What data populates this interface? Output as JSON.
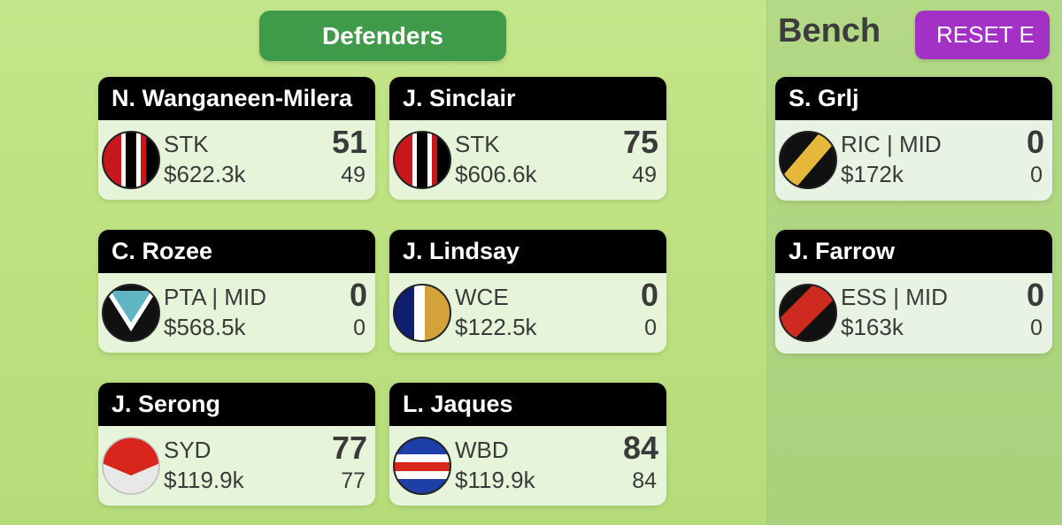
{
  "section": {
    "label": "Defenders"
  },
  "bench": {
    "title": "Bench",
    "reset_label": "RESET E"
  },
  "defenders": [
    {
      "name": "N. Wanganeen-Milera",
      "team": "STK",
      "price": "$622.3k",
      "score": "51",
      "avg": "49",
      "guernsey": "stk-icon"
    },
    {
      "name": "J. Sinclair",
      "team": "STK",
      "price": "$606.6k",
      "score": "75",
      "avg": "49",
      "guernsey": "stk-icon"
    },
    {
      "name": "C. Rozee",
      "team": "PTA | MID",
      "price": "$568.5k",
      "score": "0",
      "avg": "0",
      "guernsey": "pta-icon"
    },
    {
      "name": "J. Lindsay",
      "team": "WCE",
      "price": "$122.5k",
      "score": "0",
      "avg": "0",
      "guernsey": "wce-icon"
    },
    {
      "name": "J. Serong",
      "team": "SYD",
      "price": "$119.9k",
      "score": "77",
      "avg": "77",
      "guernsey": "syd-icon"
    },
    {
      "name": "L. Jaques",
      "team": "WBD",
      "price": "$119.9k",
      "score": "84",
      "avg": "84",
      "guernsey": "wbd-icon"
    }
  ],
  "bench_players": [
    {
      "name": "S. Grlj",
      "team": "RIC | MID",
      "price": "$172k",
      "score": "0",
      "avg": "0",
      "guernsey": "ric-icon"
    },
    {
      "name": "J. Farrow",
      "team": "ESS | MID",
      "price": "$163k",
      "score": "0",
      "avg": "0",
      "guernsey": "ess-icon"
    }
  ],
  "colors": {
    "section_button": "#3f9a4a",
    "reset_button": "#a431c6",
    "card_header": "#000000",
    "card_body": "#e6f5da"
  }
}
